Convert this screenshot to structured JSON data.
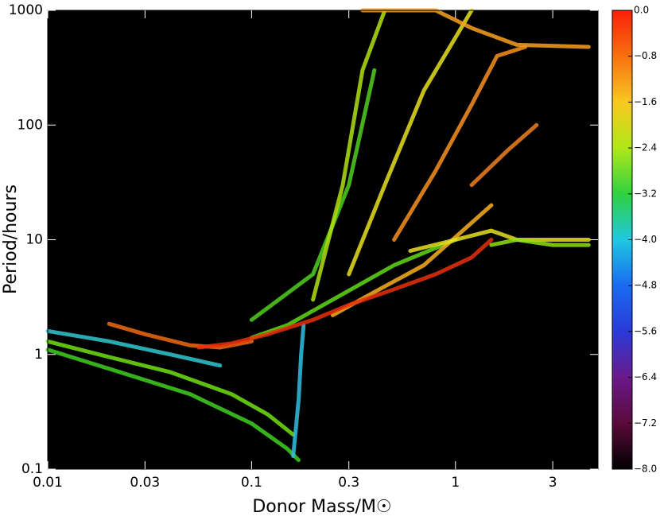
{
  "chart_data": {
    "type": "line",
    "xlabel": "Donor Mass/M☉",
    "ylabel": "Period/hours",
    "xscale": "log",
    "yscale": "log",
    "xlim": [
      0.01,
      5
    ],
    "ylim": [
      0.1,
      1000
    ],
    "xticks": [
      0.01,
      0.03,
      0.1,
      0.3,
      1,
      3
    ],
    "yticks": [
      0.1,
      1,
      10,
      100,
      1000
    ],
    "background": "#000000",
    "colorbar": {
      "clim": [
        -8,
        0
      ],
      "ticks": [
        {
          "value": 0,
          "label": "0.0"
        },
        {
          "value": -0.8,
          "label": "−0.8"
        },
        {
          "value": -1.6,
          "label": "−1.6"
        },
        {
          "value": -2.4,
          "label": "−2.4"
        },
        {
          "value": -3.2,
          "label": "−3.2"
        },
        {
          "value": -4,
          "label": "−4.0"
        },
        {
          "value": -4.8,
          "label": "−4.8"
        },
        {
          "value": -5.6,
          "label": "−5.6"
        },
        {
          "value": -6.4,
          "label": "−6.4"
        },
        {
          "value": -7.2,
          "label": "−7.2"
        },
        {
          "value": -8,
          "label": "−8.0"
        }
      ],
      "colormap": [
        "#000000",
        "#5a0a3a",
        "#6a1a8a",
        "#2a3ad8",
        "#1a6af0",
        "#20c8e0",
        "#30d040",
        "#b0e818",
        "#f8c820",
        "#f87010",
        "#f82008"
      ]
    },
    "series": [
      {
        "color": "#30c8d0",
        "x": [
          0.01,
          0.02,
          0.04,
          0.07
        ],
        "values": [
          1.6,
          1.3,
          1.0,
          0.8
        ]
      },
      {
        "color": "#40d020",
        "x": [
          0.01,
          0.02,
          0.05,
          0.1,
          0.15,
          0.17
        ],
        "values": [
          1.1,
          0.75,
          0.45,
          0.25,
          0.15,
          0.12
        ]
      },
      {
        "color": "#70e010",
        "x": [
          0.01,
          0.02,
          0.04,
          0.08,
          0.12,
          0.16
        ],
        "values": [
          1.3,
          0.95,
          0.7,
          0.45,
          0.3,
          0.2
        ]
      },
      {
        "color": "#30c0e0",
        "x": [
          0.16,
          0.17,
          0.175,
          0.18
        ],
        "values": [
          0.13,
          0.4,
          1.0,
          1.8
        ]
      },
      {
        "color": "#f06a10",
        "x": [
          0.02,
          0.03,
          0.05,
          0.07,
          0.1
        ],
        "values": [
          1.85,
          1.5,
          1.2,
          1.15,
          1.3
        ]
      },
      {
        "color": "#60d818",
        "x": [
          0.1,
          0.15,
          0.25,
          0.5,
          1
        ],
        "values": [
          1.4,
          1.8,
          3,
          6,
          10
        ]
      },
      {
        "color": "#50d020",
        "x": [
          0.1,
          0.2,
          0.3,
          0.4
        ],
        "values": [
          2,
          5,
          30,
          300
        ]
      },
      {
        "color": "#b0e010",
        "x": [
          0.2,
          0.28,
          0.35,
          0.45
        ],
        "values": [
          3,
          30,
          300,
          1000
        ]
      },
      {
        "color": "#e8e020",
        "x": [
          0.3,
          0.45,
          0.7,
          1.2
        ],
        "values": [
          5,
          30,
          200,
          1000
        ]
      },
      {
        "color": "#f8b020",
        "x": [
          0.25,
          0.4,
          0.7,
          1.5
        ],
        "values": [
          2.2,
          3.5,
          6,
          20
        ]
      },
      {
        "color": "#f8a020",
        "x": [
          0.35,
          0.5,
          0.8,
          1.2,
          2,
          4.5
        ],
        "values": [
          1000,
          1000,
          1000,
          700,
          500,
          480
        ]
      },
      {
        "color": "#f89020",
        "x": [
          0.5,
          0.8,
          1.2,
          1.6,
          2.2
        ],
        "values": [
          10,
          40,
          150,
          400,
          480
        ]
      },
      {
        "color": "#f08020",
        "x": [
          1.2,
          1.8,
          2.5
        ],
        "values": [
          30,
          60,
          100
        ]
      },
      {
        "color": "#e8e020",
        "x": [
          0.6,
          1,
          1.5,
          2,
          4.5
        ],
        "values": [
          8,
          10,
          12,
          10,
          10
        ]
      },
      {
        "color": "#90e010",
        "x": [
          1.5,
          2,
          3,
          4.5
        ],
        "values": [
          9,
          10,
          9,
          9
        ]
      },
      {
        "color": "#e8300a",
        "x": [
          0.055,
          0.08,
          0.12,
          0.2,
          0.3,
          0.5,
          0.8,
          1.2,
          1.5
        ],
        "values": [
          1.15,
          1.25,
          1.5,
          2.0,
          2.7,
          3.7,
          5,
          7,
          10
        ]
      }
    ]
  }
}
